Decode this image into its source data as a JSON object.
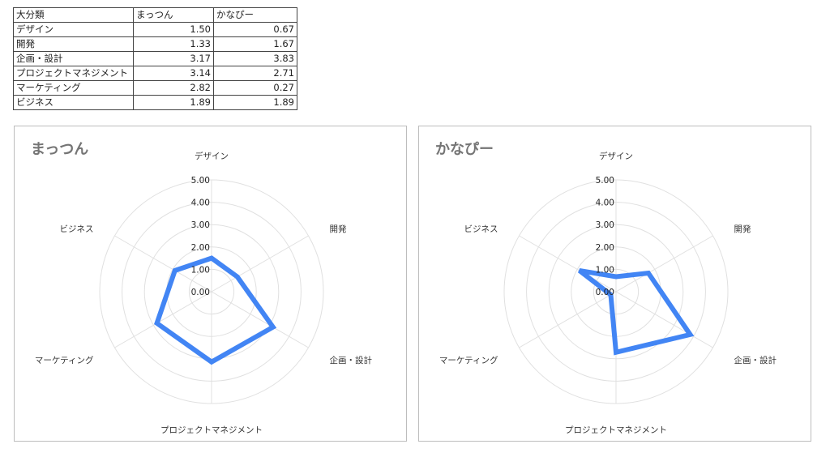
{
  "table": {
    "headers": [
      "大分類",
      "まっつん",
      "かなぴー"
    ],
    "rows": [
      [
        "デザイン",
        "1.50",
        "0.67"
      ],
      [
        "開発",
        "1.33",
        "1.67"
      ],
      [
        "企画・設計",
        "3.17",
        "3.83"
      ],
      [
        "プロジェクトマネジメント",
        "3.14",
        "2.71"
      ],
      [
        "マーケティング",
        "2.82",
        "0.27"
      ],
      [
        "ビジネス",
        "1.89",
        "1.89"
      ]
    ]
  },
  "chart_data": [
    {
      "type": "radar",
      "title": "まっつん",
      "categories": [
        "デザイン",
        "開発",
        "企画・設計",
        "プロジェクトマネジメント",
        "マーケティング",
        "ビジネス"
      ],
      "series": [
        {
          "name": "まっつん",
          "values": [
            1.5,
            1.33,
            3.17,
            3.14,
            2.82,
            1.89
          ]
        }
      ],
      "ticks": [
        "0.00",
        "1.00",
        "2.00",
        "3.00",
        "4.00",
        "5.00"
      ],
      "rlim": [
        0,
        5
      ],
      "color": "#4285f4",
      "grid": true,
      "legend": "none"
    },
    {
      "type": "radar",
      "title": "かなぴー",
      "categories": [
        "デザイン",
        "開発",
        "企画・設計",
        "プロジェクトマネジメント",
        "マーケティング",
        "ビジネス"
      ],
      "series": [
        {
          "name": "かなぴー",
          "values": [
            0.67,
            1.67,
            3.83,
            2.71,
            0.27,
            1.89
          ]
        }
      ],
      "ticks": [
        "0.00",
        "1.00",
        "2.00",
        "3.00",
        "4.00",
        "5.00"
      ],
      "rlim": [
        0,
        5
      ],
      "color": "#4285f4",
      "grid": true,
      "legend": "none"
    }
  ]
}
